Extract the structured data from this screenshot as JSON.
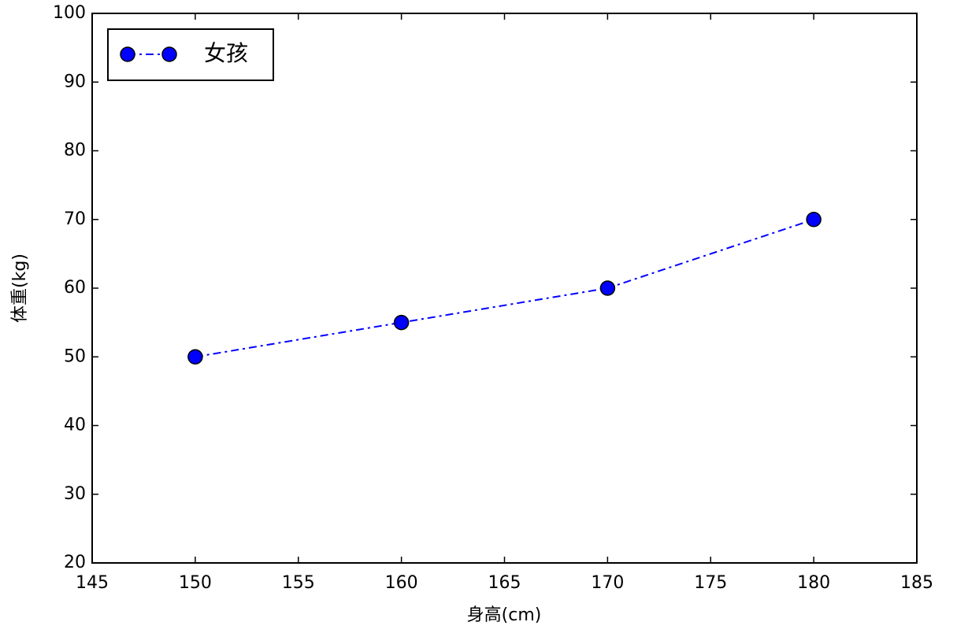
{
  "chart_data": {
    "type": "line",
    "x_label": "身高(cm)",
    "y_label": "体重(kg)",
    "x": [
      150,
      160,
      170,
      180
    ],
    "series": [
      {
        "name": "女孩",
        "color": "#0000ff",
        "values": [
          50,
          55,
          60,
          70
        ]
      }
    ],
    "xlim": [
      145,
      185
    ],
    "xticks": [
      145,
      150,
      155,
      160,
      165,
      170,
      175,
      180,
      185
    ],
    "ylim": [
      20,
      100
    ],
    "yticks": [
      20,
      30,
      40,
      50,
      60,
      70,
      80,
      90,
      100
    ],
    "grid": false,
    "legend": "upper left",
    "line_style": "dashdot",
    "marker": "circle"
  }
}
